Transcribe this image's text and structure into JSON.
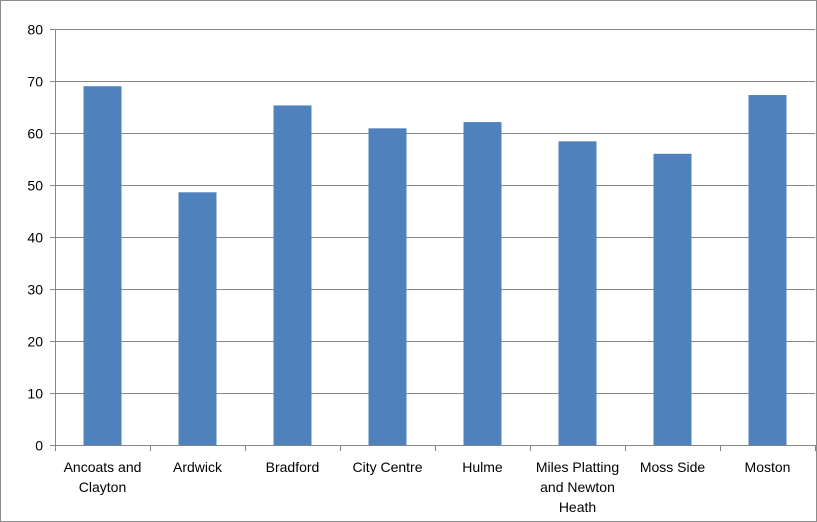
{
  "chart_data": {
    "type": "bar",
    "categories": [
      [
        "Ancoats and",
        "Clayton"
      ],
      [
        "Ardwick"
      ],
      [
        "Bradford"
      ],
      [
        "City Centre"
      ],
      [
        "Hulme"
      ],
      [
        "Miles Platting",
        "and Newton",
        "Heath"
      ],
      [
        "Moss Side"
      ],
      [
        "Moston"
      ]
    ],
    "series": [
      {
        "values": [
          69,
          48.6,
          65.3,
          60.9,
          62.1,
          58.4,
          56,
          67.3
        ]
      }
    ],
    "ylim": [
      0,
      80
    ],
    "yticks": [
      "0",
      "10",
      "20",
      "30",
      "40",
      "50",
      "60",
      "70",
      "80"
    ],
    "title": "",
    "xlabel": "",
    "ylabel": "",
    "grid": true,
    "legend": "none",
    "colors": {
      "bar": "#4f81bd",
      "grid": "#868686",
      "axis": "#868686"
    }
  }
}
